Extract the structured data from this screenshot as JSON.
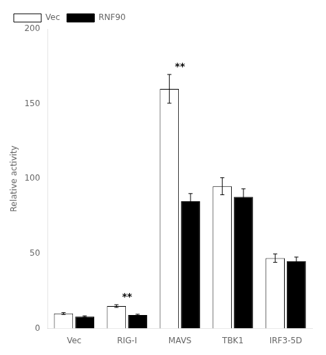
{
  "chart_data": {
    "type": "bar",
    "categories": [
      "Vec",
      "RIG-I",
      "MAVS",
      "TBK1",
      "IRF3-5D"
    ],
    "series": [
      {
        "name": "Vec",
        "color": "white",
        "values": [
          10,
          15,
          160,
          95,
          47
        ],
        "errors": [
          0.6,
          0.9,
          9.6,
          5.7,
          2.82
        ]
      },
      {
        "name": "RNF90",
        "color": "black",
        "values": [
          8,
          9,
          85,
          88,
          45
        ],
        "errors": [
          0.48,
          0.54,
          5.1,
          5.28,
          2.7
        ]
      }
    ],
    "y_label": "Relative activity",
    "ylim": [
      0,
      200
    ],
    "yticks": [
      0,
      50,
      100,
      150,
      200
    ],
    "annotations": [
      {
        "category": "RIG-I",
        "text": "**"
      },
      {
        "category": "MAVS",
        "text": "**"
      }
    ],
    "legend": "upper left",
    "grid": false
  }
}
